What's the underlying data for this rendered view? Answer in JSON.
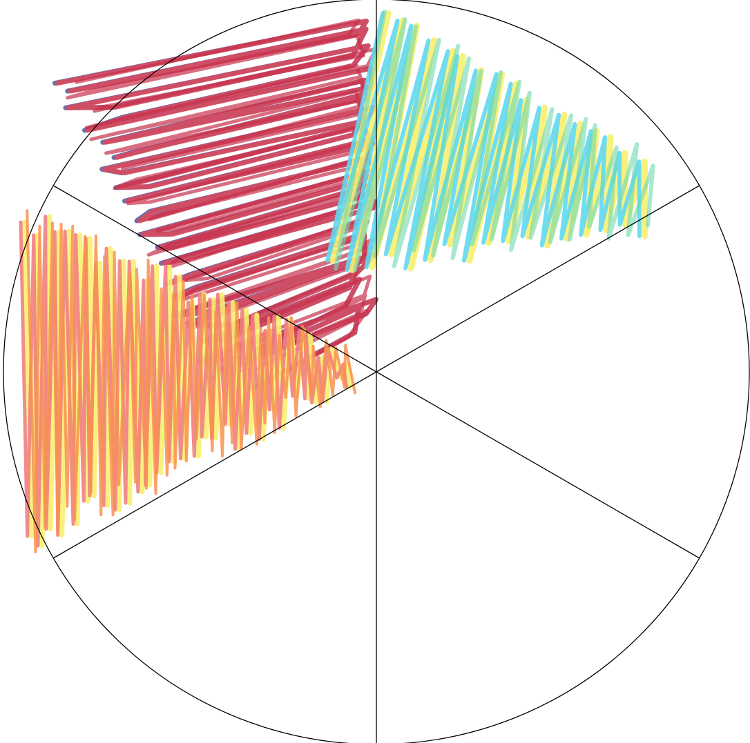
{
  "wheel": {
    "segment_count": 6,
    "outline_color": "#000000",
    "background": "#ffffff"
  },
  "segments": [
    {
      "name": "upper-left",
      "filled": true,
      "colors": [
        "#6068a8",
        "#e04858",
        "#c8304c"
      ]
    },
    {
      "name": "upper-right",
      "filled": true,
      "colors": [
        "#f8f070",
        "#60d8f0",
        "#70d8b0"
      ]
    },
    {
      "name": "right",
      "filled": false,
      "colors": []
    },
    {
      "name": "lower-right",
      "filled": false,
      "colors": []
    },
    {
      "name": "lower-left",
      "filled": false,
      "colors": []
    },
    {
      "name": "left",
      "filled": true,
      "colors": [
        "#f8f070",
        "#f08080",
        "#f89050"
      ]
    }
  ]
}
